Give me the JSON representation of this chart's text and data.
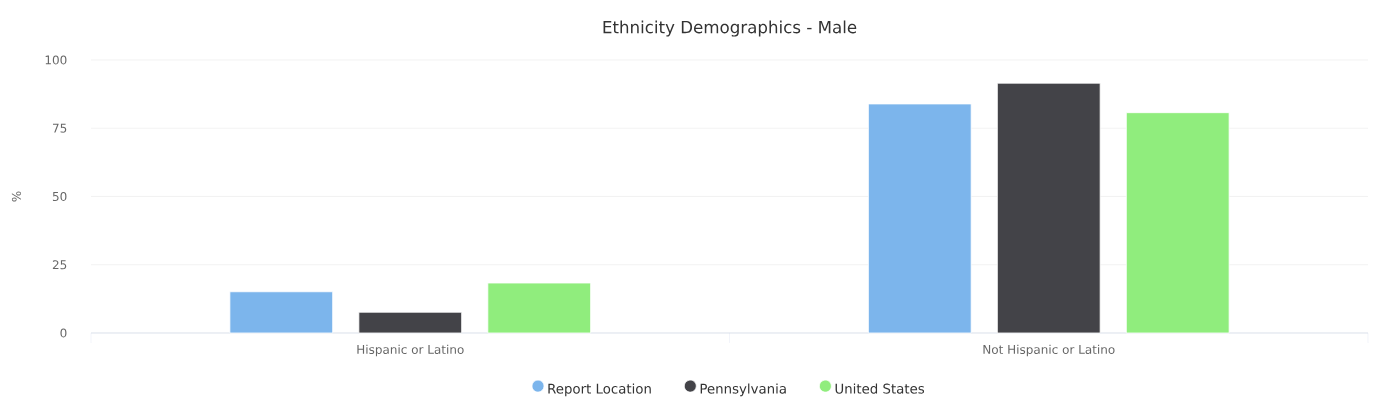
{
  "chart_data": {
    "type": "bar",
    "title": "Ethnicity Demographics - Male",
    "ylabel": "%",
    "categories": [
      "Hispanic or Latino",
      "Not Hispanic or Latino"
    ],
    "series": [
      {
        "name": "Report Location",
        "color": "#7cb5ec",
        "values": [
          15.1,
          83.9
        ]
      },
      {
        "name": "Pennsylvania",
        "color": "#434348",
        "values": [
          7.6,
          91.5
        ]
      },
      {
        "name": "United States",
        "color": "#90ed7d",
        "values": [
          18.3,
          80.7
        ]
      }
    ],
    "ylim": [
      0,
      100
    ],
    "yticks": [
      0,
      25,
      50,
      75,
      100
    ],
    "grid": "y",
    "legend": "bottom"
  }
}
